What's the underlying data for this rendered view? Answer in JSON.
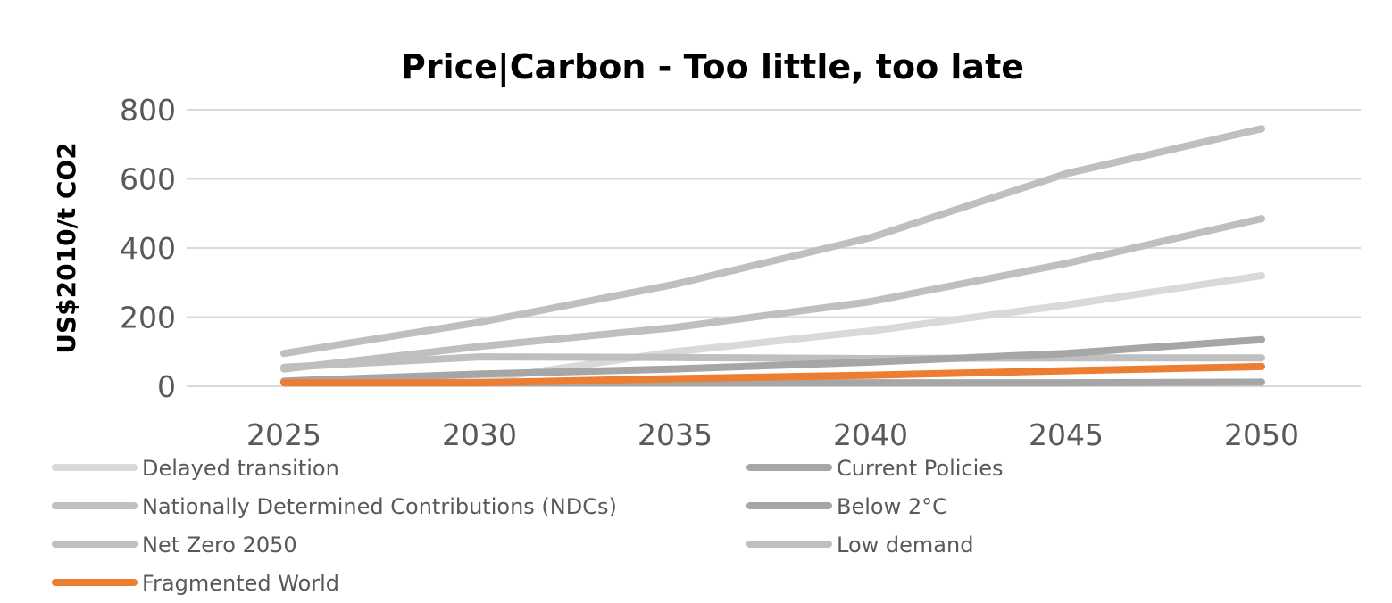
{
  "chart_data": {
    "type": "line",
    "title": "Price|Carbon - Too little, too late",
    "xlabel": "",
    "ylabel": "US$2010/t CO2",
    "x": [
      2025,
      2030,
      2035,
      2040,
      2045,
      2050
    ],
    "x_tick_labels": [
      "2025",
      "2030",
      "2035",
      "2040",
      "2045",
      "2050"
    ],
    "y_ticks": [
      0,
      200,
      400,
      600,
      800
    ],
    "y_tick_labels": [
      "0",
      "200",
      "400",
      "600",
      "800"
    ],
    "ylim": [
      0,
      800
    ],
    "grid": true,
    "legend_position": "bottom",
    "series": [
      {
        "name": "Delayed transition",
        "color": "#d9d9d9",
        "values": [
          12,
          18,
          100,
          160,
          235,
          320
        ]
      },
      {
        "name": "Current Policies",
        "color": "#a6a6a6",
        "values": [
          10,
          10,
          10,
          10,
          10,
          12
        ]
      },
      {
        "name": "Nationally Determined Contributions (NDCs)",
        "color": "#bfbfbf",
        "values": [
          55,
          85,
          83,
          80,
          82,
          82
        ]
      },
      {
        "name": "Below 2°C",
        "color": "#a6a6a6",
        "values": [
          15,
          35,
          50,
          70,
          95,
          135
        ]
      },
      {
        "name": "Net Zero 2050",
        "color": "#bfbfbf",
        "values": [
          95,
          185,
          295,
          430,
          615,
          745
        ]
      },
      {
        "name": "Low demand",
        "color": "#bfbfbf",
        "values": [
          50,
          115,
          170,
          245,
          355,
          485
        ]
      },
      {
        "name": "Fragmented World",
        "color": "#ed7d31",
        "values": [
          10,
          10,
          22,
          32,
          45,
          57
        ]
      }
    ]
  }
}
